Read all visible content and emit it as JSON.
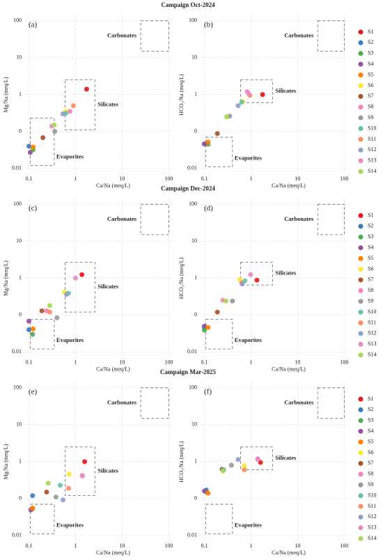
{
  "row_titles": [
    "Campaign Oct-2024",
    "Campaign Dec-2024",
    "Campaign Mar-2025"
  ],
  "legend": [
    {
      "name": "S1",
      "color": "#e41a1c"
    },
    {
      "name": "S2",
      "color": "#377eb8"
    },
    {
      "name": "S3",
      "color": "#4daf4a"
    },
    {
      "name": "S4",
      "color": "#984ea3"
    },
    {
      "name": "S5",
      "color": "#ff7f00"
    },
    {
      "name": "S6",
      "color": "#ffe633"
    },
    {
      "name": "S7",
      "color": "#a65628"
    },
    {
      "name": "S8",
      "color": "#f781bf"
    },
    {
      "name": "S9",
      "color": "#999999"
    },
    {
      "name": "S10",
      "color": "#66c2a5"
    },
    {
      "name": "S11",
      "color": "#fc8d62"
    },
    {
      "name": "S12",
      "color": "#8da0cb"
    },
    {
      "name": "S13",
      "color": "#e78ac3"
    },
    {
      "name": "S14",
      "color": "#a6d854"
    }
  ],
  "chart_data": [
    {
      "type": "scatter",
      "panel": "(a)",
      "xlabel": "Ca/Na (meq/L)",
      "ylabel": "Mg/Na (meq/L)",
      "xscale": "log",
      "yscale": "log",
      "grid": true,
      "xlim": [
        0.08,
        130
      ],
      "ylim": [
        0.007,
        140
      ],
      "xticks": [
        0.1,
        1,
        10,
        100
      ],
      "yticks": [
        0.01,
        {
          "value": 0.1,
          "label": "0"
        },
        1,
        10,
        100
      ],
      "x": [
        1.73,
        0.1,
        0.123,
        0.107,
        0.123,
        0.62,
        0.2,
        0.76,
        0.36,
        0.62,
        0.9,
        0.54,
        0.31,
        0.35
      ],
      "values": [
        1.4,
        0.04,
        0.032,
        0.027,
        0.038,
        0.35,
        0.068,
        0.35,
        0.1,
        0.31,
        0.5,
        0.3,
        0.14,
        0.15
      ],
      "regions": [
        {
          "label": "Carbonates",
          "x": [
            25,
            100
          ],
          "y": [
            15,
            100
          ]
        },
        {
          "label": "Silicates",
          "x": [
            0.6,
            2.6
          ],
          "y": [
            0.11,
            2.5
          ]
        },
        {
          "label": "Evaporites",
          "x": [
            0.107,
            0.35
          ],
          "y": [
            0.012,
            0.23
          ]
        }
      ]
    },
    {
      "type": "scatter",
      "panel": "(b)",
      "xlabel": "Ca/Na (meq/L)",
      "ylabel": "HCO₃/Na (meq/L)",
      "xscale": "log",
      "yscale": "log",
      "grid": true,
      "xlim": [
        0.08,
        130
      ],
      "ylim": [
        0.007,
        140
      ],
      "xticks": [
        0.1,
        1,
        10,
        100
      ],
      "yticks": [
        0.01,
        {
          "value": 0.1,
          "label": "0"
        },
        1,
        10,
        100
      ],
      "x": [
        1.77,
        0.1,
        0.12,
        0.1,
        0.12,
        0.67,
        0.19,
        0.83,
        0.35,
        0.63,
        0.95,
        0.53,
        0.89,
        0.3
      ],
      "values": [
        1.0,
        0.046,
        0.045,
        0.046,
        0.052,
        0.65,
        0.088,
        1.2,
        0.26,
        0.62,
        0.95,
        0.5,
        1.05,
        0.25
      ],
      "regions": [
        {
          "label": "Carbonates",
          "x": [
            27,
            100
          ],
          "y": [
            15,
            100
          ]
        },
        {
          "label": "Silicates",
          "x": [
            0.6,
            2.9
          ],
          "y": [
            0.6,
            2.5
          ]
        },
        {
          "label": "Evaporites",
          "x": [
            0.107,
            0.4
          ],
          "y": [
            0.011,
            0.07
          ]
        }
      ]
    },
    {
      "type": "scatter",
      "panel": "(c)",
      "xlabel": "Ca/Na (meq/L)",
      "ylabel": "Mg/Na (meq/L)",
      "xscale": "log",
      "yscale": "log",
      "grid": true,
      "xlim": [
        0.08,
        130
      ],
      "ylim": [
        0.007,
        140
      ],
      "xticks": [
        0.1,
        1,
        10,
        100
      ],
      "yticks": [
        0.01,
        {
          "value": 0.1,
          "label": "0"
        },
        1,
        10,
        100
      ],
      "x": [
        1.37,
        0.1,
        0.12,
        0.1,
        0.123,
        0.58,
        0.19,
        0.24,
        0.4,
        0.71,
        0.28,
        0.64,
        1.0,
        0.28
      ],
      "values": [
        1.24,
        0.04,
        0.03,
        0.068,
        0.042,
        0.42,
        0.13,
        0.13,
        0.084,
        0.39,
        0.12,
        0.36,
        1.0,
        0.18
      ],
      "regions": [
        {
          "label": "Carbonates",
          "x": [
            25,
            100
          ],
          "y": [
            15,
            100
          ]
        },
        {
          "label": "Silicates",
          "x": [
            0.6,
            2.6
          ],
          "y": [
            0.12,
            2.7
          ]
        },
        {
          "label": "Evaporites",
          "x": [
            0.107,
            0.35
          ],
          "y": [
            0.012,
            0.077
          ]
        }
      ]
    },
    {
      "type": "scatter",
      "panel": "(d)",
      "xlabel": "Ca/Na (meq/L)",
      "ylabel": "HCO₃/Na (meq/L)",
      "xscale": "log",
      "yscale": "log",
      "grid": true,
      "xlim": [
        0.08,
        130
      ],
      "ylim": [
        0.007,
        140
      ],
      "xticks": [
        0.1,
        1,
        10,
        100
      ],
      "yticks": [
        0.01,
        {
          "value": 0.1,
          "label": "0"
        },
        1,
        10,
        100
      ],
      "x": [
        1.34,
        0.1,
        0.1,
        0.1,
        0.12,
        0.58,
        0.19,
        0.25,
        0.4,
        0.74,
        0.63,
        0.65,
        0.98,
        0.29
      ],
      "values": [
        0.88,
        0.046,
        0.039,
        0.05,
        0.046,
        0.91,
        0.12,
        0.25,
        0.24,
        0.84,
        0.74,
        0.69,
        1.24,
        0.24
      ],
      "regions": [
        {
          "label": "Carbonates",
          "x": [
            27,
            100
          ],
          "y": [
            15,
            100
          ]
        },
        {
          "label": "Silicates",
          "x": [
            0.6,
            2.9
          ],
          "y": [
            0.65,
            2.7
          ]
        },
        {
          "label": "Evaporites",
          "x": [
            0.107,
            0.4
          ],
          "y": [
            0.012,
            0.077
          ]
        }
      ]
    },
    {
      "type": "scatter",
      "panel": "(e)",
      "xlabel": "Ca/Na (meq/L)",
      "ylabel": "Mg/Na (meq/L)",
      "xscale": "log",
      "yscale": "log",
      "grid": true,
      "xlim": [
        0.08,
        130
      ],
      "ylim": [
        0.007,
        140
      ],
      "xticks": [
        0.1,
        1,
        10,
        100
      ],
      "yticks": [
        0.01,
        {
          "value": 0.1,
          "label": "0"
        },
        1,
        10,
        100
      ],
      "x": [
        1.57,
        0.12,
        0.12,
        0.11,
        0.12,
        0.73,
        0.24,
        1.4,
        0.38,
        0.47,
        0.71,
        0.54,
        1.4,
        0.26
      ],
      "values": [
        1.0,
        0.12,
        0.053,
        0.049,
        0.055,
        0.46,
        0.15,
        0.42,
        0.11,
        0.23,
        0.19,
        0.092,
        0.41,
        0.26
      ],
      "regions": [
        {
          "label": "Carbonates",
          "x": [
            25,
            100
          ],
          "y": [
            15,
            100
          ]
        },
        {
          "label": "Silicates",
          "x": [
            0.6,
            2.6
          ],
          "y": [
            0.12,
            2.5
          ]
        },
        {
          "label": "Evaporites",
          "x": [
            0.107,
            0.35
          ],
          "y": [
            0.011,
            0.07
          ]
        }
      ]
    },
    {
      "type": "scatter",
      "panel": "(f)",
      "xlabel": "Ca/Na (meq/L)",
      "ylabel": "HCO₃/Na (meq/L)",
      "xscale": "log",
      "yscale": "log",
      "grid": true,
      "xlim": [
        0.08,
        130
      ],
      "ylim": [
        0.007,
        140
      ],
      "xticks": [
        0.1,
        1,
        10,
        100
      ],
      "yticks": [
        0.01,
        {
          "value": 0.1,
          "label": "0"
        },
        1,
        10,
        100
      ],
      "x": [
        1.6,
        0.11,
        0.11,
        0.1,
        0.12,
        0.72,
        0.24,
        1.4,
        0.38,
        0.26,
        0.72,
        0.53,
        1.4,
        0.25
      ],
      "values": [
        0.95,
        0.17,
        0.15,
        0.16,
        0.14,
        0.77,
        0.62,
        1.2,
        0.8,
        0.6,
        0.6,
        1.14,
        1.15,
        0.56
      ],
      "regions": [
        {
          "label": "Carbonates",
          "x": [
            27,
            100
          ],
          "y": [
            15,
            100
          ]
        },
        {
          "label": "Silicates",
          "x": [
            0.6,
            2.9
          ],
          "y": [
            0.6,
            2.5
          ]
        },
        {
          "label": "Evaporites",
          "x": [
            0.107,
            0.4
          ],
          "y": [
            0.011,
            0.07
          ]
        }
      ]
    }
  ]
}
